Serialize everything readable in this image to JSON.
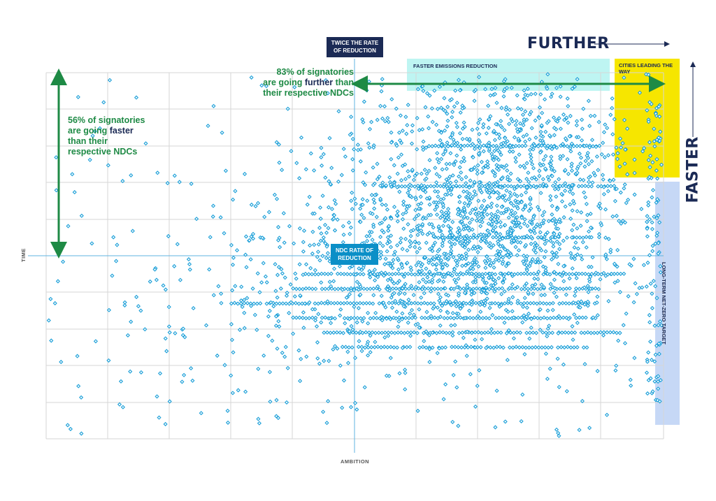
{
  "labels": {
    "twice_rate": "TWICE THE RATE OF REDUCTION",
    "ndc_rate": "NDC RATE OF REDUCTION",
    "further": "FURTHER",
    "faster": "FASTER",
    "faster_emissions": "FASTER EMISSIONS REDUCTION",
    "cities_leading": "CITIES LEADING THE WAY",
    "long_term": "LONG-TERM NET-ZERO TARGET",
    "xlabel": "AMBITION",
    "ylabel": "TIME",
    "stat_further": {
      "part1": "83% of signatories",
      "part2": "are going ",
      "highlight": "further",
      "part3": " than",
      "part4": "their respective NDCs"
    },
    "stat_faster": {
      "part1": "56% of signatories",
      "part2": "are going ",
      "highlight": "faster",
      "part3": "than their",
      "part4": "respective NDCs"
    }
  },
  "colors": {
    "point": "#1b9fd8",
    "navy": "#1b2a55",
    "green": "#1e8a45",
    "ndc_blue": "#0b8fc7",
    "teal_zone": "#a8f2ee",
    "yellow_zone": "#f6e600",
    "lavender_zone": "#c6d8f6",
    "grid": "#d6d6d6"
  },
  "chart_data": {
    "type": "scatter",
    "xlabel": "AMBITION",
    "ylabel": "TIME",
    "grid": true,
    "points_summary": "dense cloud of diamond markers, most concentrated to the right of the twice-the-rate line and just below the NDC line",
    "bands": [
      {
        "y": 0.19,
        "x_from": 0.55,
        "x_to": 0.92
      },
      {
        "y": 0.05,
        "x_from": 0.63,
        "x_to": 0.91
      },
      {
        "y": -0.05,
        "x_from": 0.42,
        "x_to": 0.94
      },
      {
        "y": -0.09,
        "x_from": 0.4,
        "x_to": 0.9
      },
      {
        "y": -0.13,
        "x_from": 0.3,
        "x_to": 0.89
      },
      {
        "y": -0.17,
        "x_from": 0.4,
        "x_to": 0.89
      },
      {
        "y": -0.21,
        "x_from": 0.45,
        "x_to": 0.93
      },
      {
        "y": -0.25,
        "x_from": 0.48,
        "x_to": 0.88
      },
      {
        "y": 0.3,
        "x_from": 0.62,
        "x_to": 0.9
      }
    ]
  }
}
